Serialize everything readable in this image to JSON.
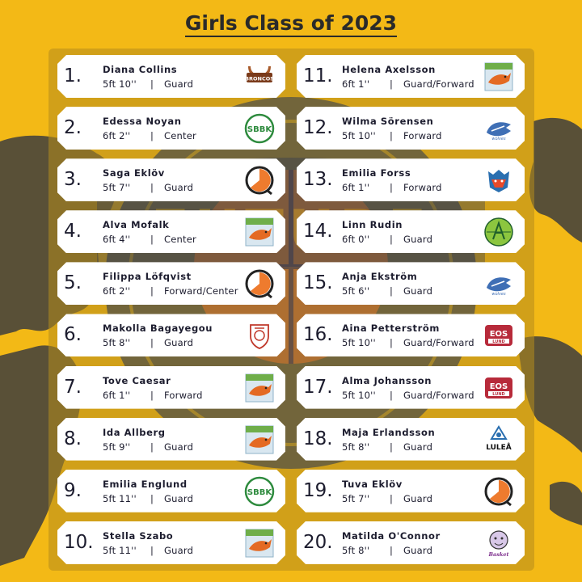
{
  "title": "Girls Class of 2023",
  "players": [
    {
      "rank": "1.",
      "name": "Diana Collins",
      "height": "5ft 10''",
      "position": "Guard",
      "club_icon": "broncos-logo-icon",
      "logo_text": "BRONCOS"
    },
    {
      "rank": "2.",
      "name": "Edessa Noyan",
      "height": "6ft 2''",
      "position": "Center",
      "club_icon": "sbbk-logo-icon",
      "logo_text": "SBBK"
    },
    {
      "rank": "3.",
      "name": "Saga Eklöv",
      "height": "5ft 7''",
      "position": "Guard",
      "club_icon": "q-circle-logo-icon",
      "logo_text": ""
    },
    {
      "rank": "4.",
      "name": "Alva Mofalk",
      "height": "6ft 4''",
      "position": "Center",
      "club_icon": "fox-basket-logo-icon",
      "logo_text": ""
    },
    {
      "rank": "5.",
      "name": "Filippa Löfqvist",
      "height": "6ft 2''",
      "position": "Forward/Center",
      "club_icon": "q-circle-logo-icon",
      "logo_text": ""
    },
    {
      "rank": "6.",
      "name": "Makolla Bagayegou",
      "height": "5ft 8''",
      "position": "Guard",
      "club_icon": "shield-crest-logo-icon",
      "logo_text": ""
    },
    {
      "rank": "7.",
      "name": "Tove Caesar",
      "height": "6ft 1''",
      "position": "Forward",
      "club_icon": "fox-basket-logo-icon",
      "logo_text": ""
    },
    {
      "rank": "8.",
      "name": "Ida Allberg",
      "height": "5ft 9''",
      "position": "Guard",
      "club_icon": "fox-basket-logo-icon",
      "logo_text": ""
    },
    {
      "rank": "9.",
      "name": "Emilia Englund",
      "height": "5ft 11''",
      "position": "Guard",
      "club_icon": "sbbk-logo-icon",
      "logo_text": "SBBK"
    },
    {
      "rank": "10.",
      "name": "Stella Szabo",
      "height": "5ft 11''",
      "position": "Guard",
      "club_icon": "fox-basket-logo-icon",
      "logo_text": ""
    },
    {
      "rank": "11.",
      "name": "Helena Axelsson",
      "height": "6ft 1''",
      "position": "Guard/Forward",
      "club_icon": "fox-basket-logo-icon",
      "logo_text": ""
    },
    {
      "rank": "12.",
      "name": "Wilma Sörensen",
      "height": "5ft 10''",
      "position": "Forward",
      "club_icon": "blue-wolf-logo-icon",
      "logo_text": ""
    },
    {
      "rank": "13.",
      "name": "Emilia Forss",
      "height": "6ft 1''",
      "position": "Forward",
      "club_icon": "bear-logo-icon",
      "logo_text": ""
    },
    {
      "rank": "14.",
      "name": "Linn Rudin",
      "height": "6ft 0''",
      "position": "Guard",
      "club_icon": "green-ball-logo-icon",
      "logo_text": ""
    },
    {
      "rank": "15.",
      "name": "Anja Ekström",
      "height": "5ft 6''",
      "position": "Guard",
      "club_icon": "blue-wolf-logo-icon",
      "logo_text": ""
    },
    {
      "rank": "16.",
      "name": "Aina Petterström",
      "height": "5ft 10''",
      "position": "Guard/Forward",
      "club_icon": "eos-lund-logo-icon",
      "logo_text": "EOS"
    },
    {
      "rank": "17.",
      "name": "Alma Johansson",
      "height": "5ft 10''",
      "position": "Guard/Forward",
      "club_icon": "eos-lund-logo-icon",
      "logo_text": "EOS"
    },
    {
      "rank": "18.",
      "name": "Maja Erlandsson",
      "height": "5ft 8''",
      "position": "Guard",
      "club_icon": "lulea-logo-icon",
      "logo_text": "LULEÅ"
    },
    {
      "rank": "19.",
      "name": "Tuva Eklöv",
      "height": "5ft 7''",
      "position": "Guard",
      "club_icon": "q-circle-logo-icon",
      "logo_text": ""
    },
    {
      "rank": "20.",
      "name": "Matilda O'Connor",
      "height": "5ft 8''",
      "position": "Guard",
      "club_icon": "ludvig-basket-logo-icon",
      "logo_text": "Basket"
    }
  ],
  "separator": "|",
  "colors": {
    "background": "#f3b916",
    "card": "#ffffff",
    "text": "#1c1c2e",
    "map": "#3d3d3d"
  }
}
